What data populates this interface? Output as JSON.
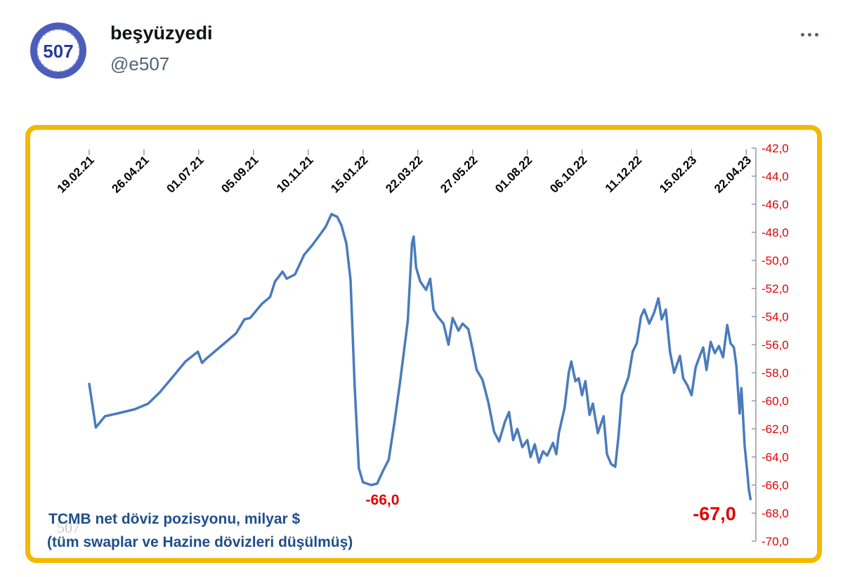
{
  "tweet": {
    "user_name": "beşyüzyedi",
    "handle": "@e507",
    "avatar_text": "507",
    "more_icon": "more-horizontal-icon"
  },
  "colors": {
    "card_border": "#f5b800",
    "line": "#4a7bbd",
    "title": "#1f4e8a",
    "axis_labels": "#e00000",
    "annotation": "#e00000"
  },
  "chart_data": {
    "type": "line",
    "title": "TCMB net döviz pozisyonu,  milyar $",
    "subtitle": "(tüm swaplar ve Hazine dövizleri düşülmüş)",
    "watermark": "507",
    "x_tick_labels": [
      "19.02.21",
      "26.04.21",
      "01.07.21",
      "05.09.21",
      "10.11.21",
      "15.01.22",
      "22.03.22",
      "27.05.22",
      "01.08.22",
      "06.10.22",
      "11.12.22",
      "15.02.23",
      "22.04.23"
    ],
    "y_tick_labels": [
      "-42,0",
      "-44,0",
      "-46,0",
      "-48,0",
      "-50,0",
      "-52,0",
      "-54,0",
      "-56,0",
      "-58,0",
      "-60,0",
      "-62,0",
      "-64,0",
      "-66,0",
      "-68,0",
      "-70,0"
    ],
    "ylim": [
      -70,
      -42
    ],
    "y_axis_position": "right",
    "grid": false,
    "annotations": [
      {
        "text": "-66,0",
        "x": "2022-01-25",
        "y": -66.0
      },
      {
        "text": "-67,0",
        "x": "2023-04-27",
        "y": -67.0
      }
    ],
    "series": [
      {
        "points": [
          [
            "2021-02-19",
            -58.8
          ],
          [
            "2021-02-27",
            -61.9
          ],
          [
            "2021-03-10",
            -61.1
          ],
          [
            "2021-03-25",
            -60.9
          ],
          [
            "2021-04-15",
            -60.6
          ],
          [
            "2021-05-01",
            -60.2
          ],
          [
            "2021-05-15",
            -59.4
          ],
          [
            "2021-06-01",
            -58.2
          ],
          [
            "2021-06-15",
            -57.2
          ],
          [
            "2021-06-30",
            -56.5
          ],
          [
            "2021-07-05",
            -57.3
          ],
          [
            "2021-07-10",
            -57.0
          ],
          [
            "2021-07-18",
            -56.6
          ],
          [
            "2021-08-01",
            -55.9
          ],
          [
            "2021-08-15",
            -55.2
          ],
          [
            "2021-08-25",
            -54.2
          ],
          [
            "2021-09-01",
            -54.1
          ],
          [
            "2021-09-15",
            -53.1
          ],
          [
            "2021-09-25",
            -52.6
          ],
          [
            "2021-10-01",
            -51.5
          ],
          [
            "2021-10-10",
            -50.8
          ],
          [
            "2021-10-15",
            -51.3
          ],
          [
            "2021-10-25",
            -51.0
          ],
          [
            "2021-11-05",
            -49.6
          ],
          [
            "2021-11-15",
            -48.9
          ],
          [
            "2021-11-25",
            -48.1
          ],
          [
            "2021-12-01",
            -47.6
          ],
          [
            "2021-12-08",
            -46.7
          ],
          [
            "2021-12-15",
            -46.9
          ],
          [
            "2021-12-20",
            -47.5
          ],
          [
            "2021-12-26",
            -48.8
          ],
          [
            "2021-12-31",
            -51.4
          ],
          [
            "2022-01-05",
            -59.0
          ],
          [
            "2022-01-10",
            -64.8
          ],
          [
            "2022-01-15",
            -65.8
          ],
          [
            "2022-01-25",
            -66.0
          ],
          [
            "2022-02-01",
            -65.9
          ],
          [
            "2022-02-08",
            -65.0
          ],
          [
            "2022-02-15",
            -64.2
          ],
          [
            "2022-02-22",
            -61.5
          ],
          [
            "2022-03-01",
            -58.5
          ],
          [
            "2022-03-10",
            -54.3
          ],
          [
            "2022-03-15",
            -48.8
          ],
          [
            "2022-03-17",
            -48.3
          ],
          [
            "2022-03-20",
            -50.5
          ],
          [
            "2022-03-25",
            -51.5
          ],
          [
            "2022-04-01",
            -52.1
          ],
          [
            "2022-04-06",
            -51.3
          ],
          [
            "2022-04-10",
            -53.5
          ],
          [
            "2022-04-15",
            -54.0
          ],
          [
            "2022-04-22",
            -54.5
          ],
          [
            "2022-04-28",
            -56.0
          ],
          [
            "2022-05-03",
            -54.1
          ],
          [
            "2022-05-10",
            -55.0
          ],
          [
            "2022-05-15",
            -54.5
          ],
          [
            "2022-05-22",
            -54.9
          ],
          [
            "2022-05-27",
            -56.3
          ],
          [
            "2022-06-01",
            -57.8
          ],
          [
            "2022-06-08",
            -58.5
          ],
          [
            "2022-06-15",
            -60.1
          ],
          [
            "2022-06-22",
            -62.2
          ],
          [
            "2022-06-28",
            -62.9
          ],
          [
            "2022-07-05",
            -61.5
          ],
          [
            "2022-07-10",
            -60.8
          ],
          [
            "2022-07-15",
            -62.8
          ],
          [
            "2022-07-20",
            -62.0
          ],
          [
            "2022-07-26",
            -63.3
          ],
          [
            "2022-08-01",
            -62.8
          ],
          [
            "2022-08-05",
            -64.0
          ],
          [
            "2022-08-10",
            -63.1
          ],
          [
            "2022-08-15",
            -64.4
          ],
          [
            "2022-08-20",
            -63.6
          ],
          [
            "2022-08-25",
            -63.9
          ],
          [
            "2022-09-01",
            -63.0
          ],
          [
            "2022-09-05",
            -63.8
          ],
          [
            "2022-09-08",
            -62.3
          ],
          [
            "2022-09-15",
            -60.5
          ],
          [
            "2022-09-20",
            -58.0
          ],
          [
            "2022-09-23",
            -57.2
          ],
          [
            "2022-09-28",
            -58.6
          ],
          [
            "2022-10-02",
            -58.4
          ],
          [
            "2022-10-06",
            -59.6
          ],
          [
            "2022-10-10",
            -58.6
          ],
          [
            "2022-10-15",
            -61.0
          ],
          [
            "2022-10-19",
            -60.2
          ],
          [
            "2022-10-25",
            -62.3
          ],
          [
            "2022-11-01",
            -61.1
          ],
          [
            "2022-11-05",
            -63.8
          ],
          [
            "2022-11-10",
            -64.5
          ],
          [
            "2022-11-15",
            -64.7
          ],
          [
            "2022-11-19",
            -62.5
          ],
          [
            "2022-11-23",
            -59.6
          ],
          [
            "2022-12-01",
            -58.3
          ],
          [
            "2022-12-06",
            -56.5
          ],
          [
            "2022-12-11",
            -55.9
          ],
          [
            "2022-12-16",
            -54.0
          ],
          [
            "2022-12-20",
            -53.5
          ],
          [
            "2022-12-26",
            -54.5
          ],
          [
            "2023-01-01",
            -53.7
          ],
          [
            "2023-01-06",
            -52.7
          ],
          [
            "2023-01-10",
            -54.2
          ],
          [
            "2023-01-15",
            -53.5
          ],
          [
            "2023-01-20",
            -56.5
          ],
          [
            "2023-01-25",
            -58.0
          ],
          [
            "2023-02-01",
            -56.8
          ],
          [
            "2023-02-05",
            -58.4
          ],
          [
            "2023-02-10",
            -58.9
          ],
          [
            "2023-02-15",
            -59.6
          ],
          [
            "2023-02-20",
            -57.6
          ],
          [
            "2023-02-25",
            -56.8
          ],
          [
            "2023-03-01",
            -56.2
          ],
          [
            "2023-03-05",
            -57.8
          ],
          [
            "2023-03-10",
            -55.8
          ],
          [
            "2023-03-15",
            -56.6
          ],
          [
            "2023-03-20",
            -56.1
          ],
          [
            "2023-03-25",
            -56.9
          ],
          [
            "2023-03-30",
            -54.6
          ],
          [
            "2023-04-03",
            -55.9
          ],
          [
            "2023-04-07",
            -56.2
          ],
          [
            "2023-04-10",
            -57.5
          ],
          [
            "2023-04-12",
            -59.3
          ],
          [
            "2023-04-14",
            -60.9
          ],
          [
            "2023-04-16",
            -59.1
          ],
          [
            "2023-04-18",
            -61.0
          ],
          [
            "2023-04-20",
            -63.2
          ],
          [
            "2023-04-23",
            -65.0
          ],
          [
            "2023-04-25",
            -66.3
          ],
          [
            "2023-04-27",
            -67.0
          ]
        ]
      }
    ]
  }
}
